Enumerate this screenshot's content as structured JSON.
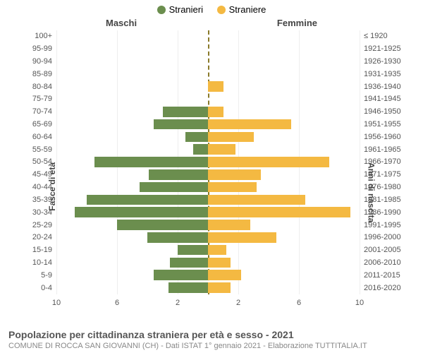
{
  "chart": {
    "type": "population-pyramid",
    "legend": [
      {
        "label": "Stranieri",
        "color": "#6b8e4e"
      },
      {
        "label": "Straniere",
        "color": "#f4b942"
      }
    ],
    "col_left_title": "Maschi",
    "col_right_title": "Femmine",
    "y_left_title": "Fasce di età",
    "y_right_title": "Anni di nascita",
    "x_max": 10,
    "x_ticks": [
      10,
      6,
      2,
      2,
      6,
      10
    ],
    "male_color": "#6b8e4e",
    "female_color": "#f4b942",
    "grid_color": "#eeeeee",
    "divider_color": "#8a7a2a",
    "rows": [
      {
        "age": "100+",
        "birth": "≤ 1920",
        "m": 0,
        "f": 0
      },
      {
        "age": "95-99",
        "birth": "1921-1925",
        "m": 0,
        "f": 0
      },
      {
        "age": "90-94",
        "birth": "1926-1930",
        "m": 0,
        "f": 0
      },
      {
        "age": "85-89",
        "birth": "1931-1935",
        "m": 0,
        "f": 0
      },
      {
        "age": "80-84",
        "birth": "1936-1940",
        "m": 0,
        "f": 1.0
      },
      {
        "age": "75-79",
        "birth": "1941-1945",
        "m": 0,
        "f": 0
      },
      {
        "age": "70-74",
        "birth": "1946-1950",
        "m": 3.0,
        "f": 1.0
      },
      {
        "age": "65-69",
        "birth": "1951-1955",
        "m": 3.6,
        "f": 5.5
      },
      {
        "age": "60-64",
        "birth": "1956-1960",
        "m": 1.5,
        "f": 3.0
      },
      {
        "age": "55-59",
        "birth": "1961-1965",
        "m": 1.0,
        "f": 1.8
      },
      {
        "age": "50-54",
        "birth": "1966-1970",
        "m": 7.5,
        "f": 8.0
      },
      {
        "age": "45-49",
        "birth": "1971-1975",
        "m": 3.9,
        "f": 3.5
      },
      {
        "age": "40-44",
        "birth": "1976-1980",
        "m": 4.5,
        "f": 3.2
      },
      {
        "age": "35-39",
        "birth": "1981-1985",
        "m": 8.0,
        "f": 6.4
      },
      {
        "age": "30-34",
        "birth": "1986-1990",
        "m": 8.8,
        "f": 9.4
      },
      {
        "age": "25-29",
        "birth": "1991-1995",
        "m": 6.0,
        "f": 2.8
      },
      {
        "age": "20-24",
        "birth": "1996-2000",
        "m": 4.0,
        "f": 4.5
      },
      {
        "age": "15-19",
        "birth": "2001-2005",
        "m": 2.0,
        "f": 1.2
      },
      {
        "age": "10-14",
        "birth": "2006-2010",
        "m": 2.5,
        "f": 1.5
      },
      {
        "age": "5-9",
        "birth": "2011-2015",
        "m": 3.6,
        "f": 2.2
      },
      {
        "age": "0-4",
        "birth": "2016-2020",
        "m": 2.6,
        "f": 1.5
      }
    ]
  },
  "footer": {
    "title": "Popolazione per cittadinanza straniera per età e sesso - 2021",
    "subtitle": "COMUNE DI ROCCA SAN GIOVANNI (CH) - Dati ISTAT 1° gennaio 2021 - Elaborazione TUTTITALIA.IT"
  }
}
